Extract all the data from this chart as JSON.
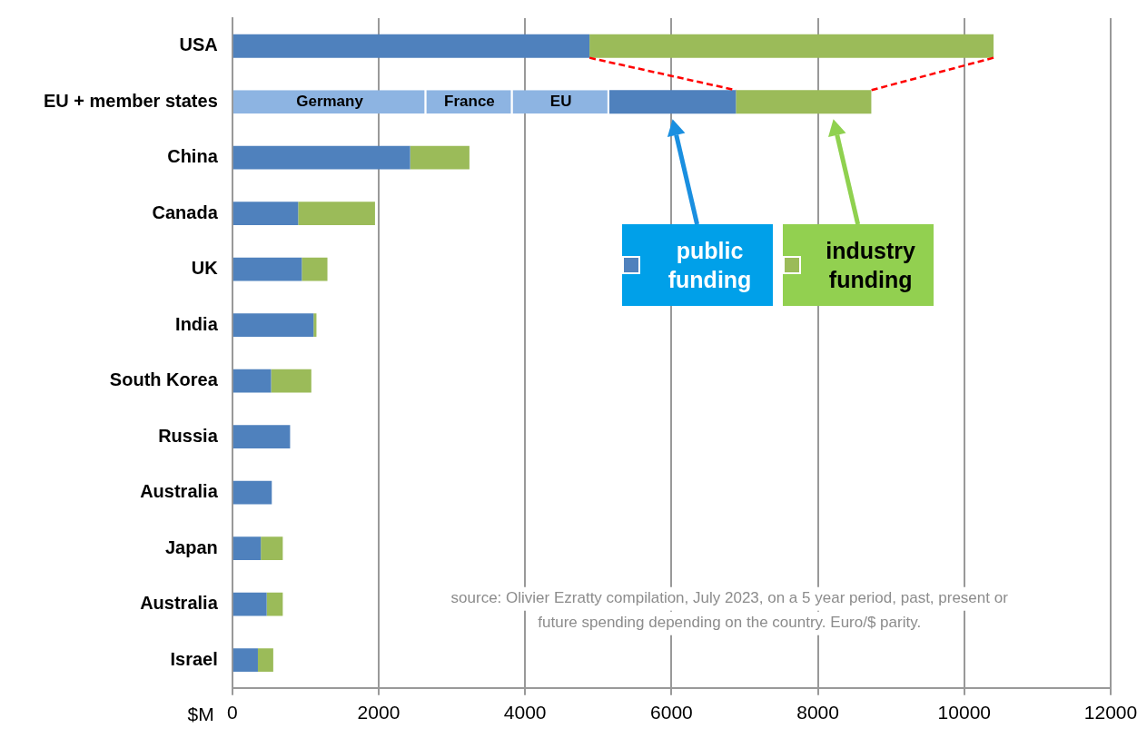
{
  "chart_data": {
    "type": "bar",
    "orientation": "horizontal",
    "stacked": true,
    "categories": [
      "USA",
      "EU + member states",
      "China",
      "Canada",
      "UK",
      "India",
      "South Korea",
      "Russia",
      "Australia",
      "Japan",
      "Australia",
      "Israel"
    ],
    "series": [
      {
        "name": "Germany",
        "color": "#8db4e2",
        "values": [
          null,
          2650,
          null,
          null,
          null,
          null,
          null,
          null,
          null,
          null,
          null,
          null
        ]
      },
      {
        "name": "France",
        "color": "#8db4e2",
        "values": [
          null,
          1180,
          null,
          null,
          null,
          null,
          null,
          null,
          null,
          null,
          null,
          null
        ]
      },
      {
        "name": "EU",
        "color": "#8db4e2",
        "values": [
          null,
          1320,
          null,
          null,
          null,
          null,
          null,
          null,
          null,
          null,
          null,
          null
        ]
      },
      {
        "name": "public funding",
        "color": "#4f81bd",
        "values": [
          4880,
          1730,
          2430,
          900,
          950,
          1110,
          530,
          790,
          540,
          390,
          470,
          350
        ]
      },
      {
        "name": "industry funding",
        "color": "#9bbb59",
        "values": [
          5520,
          1850,
          810,
          1050,
          350,
          40,
          550,
          null,
          null,
          300,
          220,
          210
        ]
      }
    ],
    "xlabel": "$M",
    "xlim": [
      0,
      12000
    ],
    "xticks": [
      0,
      2000,
      4000,
      6000,
      8000,
      10000,
      12000
    ],
    "grid": "x",
    "legend": "top right",
    "annotations": [
      "source: Olivier Ezratty compilation, July 2023, on a 5 year period, past, present or future spending depending on the country. Euro/$ parity."
    ]
  }
}
